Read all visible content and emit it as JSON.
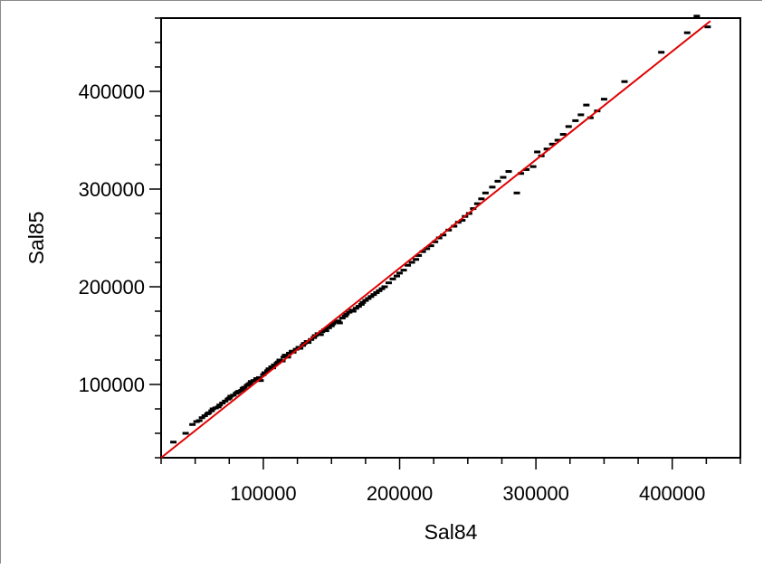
{
  "chart_data": {
    "type": "scatter",
    "title": "",
    "xlabel": "Sal84",
    "ylabel": "Sal85",
    "xlim": [
      25000,
      450000
    ],
    "ylim": [
      25000,
      475000
    ],
    "x_ticks": [
      100000,
      200000,
      300000,
      400000
    ],
    "y_ticks": [
      100000,
      200000,
      300000,
      400000
    ],
    "x_tick_labels": [
      "100000",
      "200000",
      "300000",
      "400000"
    ],
    "y_tick_labels": [
      "100000",
      "200000",
      "300000",
      "400000"
    ],
    "minor_tick_step": 25000,
    "grid": false,
    "legend": "none",
    "marker": "short horizontal dash",
    "marker_color": "#000000",
    "fit_line": {
      "color": "#e00000",
      "x": [
        25000,
        428000
      ],
      "y": [
        25000,
        472000
      ]
    },
    "points": [
      [
        34000,
        41000
      ],
      [
        43000,
        50000
      ],
      [
        48000,
        59000
      ],
      [
        51000,
        62000
      ],
      [
        53000,
        63000
      ],
      [
        55000,
        66000
      ],
      [
        57000,
        68000
      ],
      [
        59000,
        70000
      ],
      [
        60000,
        71000
      ],
      [
        62000,
        73000
      ],
      [
        63000,
        75000
      ],
      [
        65000,
        76000
      ],
      [
        67000,
        77000
      ],
      [
        68000,
        79000
      ],
      [
        70000,
        81000
      ],
      [
        72000,
        83000
      ],
      [
        74000,
        85000
      ],
      [
        75000,
        86000
      ],
      [
        76000,
        88000
      ],
      [
        78000,
        89000
      ],
      [
        80000,
        91000
      ],
      [
        81000,
        92000
      ],
      [
        82000,
        93000
      ],
      [
        84000,
        94000
      ],
      [
        85000,
        96000
      ],
      [
        86000,
        97000
      ],
      [
        88000,
        99000
      ],
      [
        89000,
        100000
      ],
      [
        90000,
        101000
      ],
      [
        91000,
        103000
      ],
      [
        93000,
        104000
      ],
      [
        95000,
        106000
      ],
      [
        97000,
        107000
      ],
      [
        98000,
        104000
      ],
      [
        100000,
        110000
      ],
      [
        101000,
        112000
      ],
      [
        103000,
        114000
      ],
      [
        104000,
        116000
      ],
      [
        106000,
        118000
      ],
      [
        107000,
        117000
      ],
      [
        108000,
        120000
      ],
      [
        110000,
        122000
      ],
      [
        111000,
        123000
      ],
      [
        112000,
        125000
      ],
      [
        114000,
        124000
      ],
      [
        115000,
        128000
      ],
      [
        116000,
        130000
      ],
      [
        118000,
        128000
      ],
      [
        119000,
        132000
      ],
      [
        121000,
        134000
      ],
      [
        122000,
        133000
      ],
      [
        124000,
        136000
      ],
      [
        126000,
        138000
      ],
      [
        127000,
        137000
      ],
      [
        129000,
        140000
      ],
      [
        130000,
        142000
      ],
      [
        132000,
        144000
      ],
      [
        133000,
        143000
      ],
      [
        135000,
        146000
      ],
      [
        137000,
        148000
      ],
      [
        138000,
        150000
      ],
      [
        140000,
        152000
      ],
      [
        142000,
        151000
      ],
      [
        143000,
        154000
      ],
      [
        145000,
        156000
      ],
      [
        146000,
        155000
      ],
      [
        148000,
        158000
      ],
      [
        150000,
        160000
      ],
      [
        151000,
        162000
      ],
      [
        153000,
        164000
      ],
      [
        155000,
        165000
      ],
      [
        156000,
        163000
      ],
      [
        158000,
        168000
      ],
      [
        160000,
        170000
      ],
      [
        161000,
        172000
      ],
      [
        163000,
        174000
      ],
      [
        165000,
        176000
      ],
      [
        166000,
        175000
      ],
      [
        168000,
        178000
      ],
      [
        170000,
        180000
      ],
      [
        172000,
        182000
      ],
      [
        173000,
        184000
      ],
      [
        175000,
        186000
      ],
      [
        177000,
        188000
      ],
      [
        179000,
        190000
      ],
      [
        181000,
        192000
      ],
      [
        183000,
        194000
      ],
      [
        185000,
        196000
      ],
      [
        187000,
        198000
      ],
      [
        189000,
        200000
      ],
      [
        192000,
        204000
      ],
      [
        195000,
        208000
      ],
      [
        198000,
        211000
      ],
      [
        200000,
        214000
      ],
      [
        203000,
        217000
      ],
      [
        206000,
        222000
      ],
      [
        209000,
        225000
      ],
      [
        212000,
        228000
      ],
      [
        214000,
        232000
      ],
      [
        217000,
        236000
      ],
      [
        220000,
        239000
      ],
      [
        223000,
        242000
      ],
      [
        226000,
        246000
      ],
      [
        229000,
        250000
      ],
      [
        232000,
        253000
      ],
      [
        236000,
        258000
      ],
      [
        240000,
        262000
      ],
      [
        243000,
        266000
      ],
      [
        246000,
        268000
      ],
      [
        248000,
        272000
      ],
      [
        251000,
        275000
      ],
      [
        254000,
        280000
      ],
      [
        257000,
        285000
      ],
      [
        260000,
        290000
      ],
      [
        263000,
        296000
      ],
      [
        268000,
        302000
      ],
      [
        272000,
        308000
      ],
      [
        276000,
        312000
      ],
      [
        280000,
        318000
      ],
      [
        286000,
        296000
      ],
      [
        289000,
        316000
      ],
      [
        293000,
        320000
      ],
      [
        298000,
        323000
      ],
      [
        301000,
        338000
      ],
      [
        304000,
        334000
      ],
      [
        308000,
        341000
      ],
      [
        312000,
        346000
      ],
      [
        316000,
        350000
      ],
      [
        320000,
        356000
      ],
      [
        324000,
        364000
      ],
      [
        329000,
        370000
      ],
      [
        333000,
        376000
      ],
      [
        337000,
        386000
      ],
      [
        340000,
        373000
      ],
      [
        345000,
        380000
      ],
      [
        350000,
        392000
      ],
      [
        365000,
        410000
      ],
      [
        392000,
        440000
      ],
      [
        411000,
        460000
      ],
      [
        418000,
        477000
      ],
      [
        426000,
        466000
      ]
    ]
  }
}
